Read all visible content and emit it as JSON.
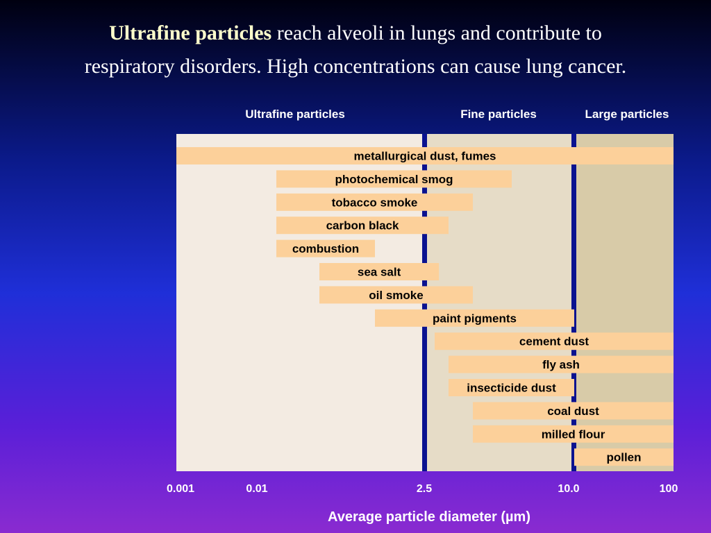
{
  "slide": {
    "title_highlight": "Ultrafine particles",
    "title_line1_rest": " reach alveoli in lungs and contribute to",
    "title_line2": "respiratory disorders. High concentrations can cause lung cancer."
  },
  "colors": {
    "ultrafine_region": "#f3ebe2",
    "fine_region": "#e6dcc7",
    "large_region": "#d8cba8",
    "divider": "#0a1290",
    "bar": "#fcd09a",
    "text": "#000000"
  },
  "chart_data": {
    "type": "bar",
    "orientation": "horizontal-range",
    "xlabel": "Average particle diameter (µm)",
    "x_ticks": [
      "0.001",
      "0.01",
      "2.5",
      "10.0",
      "100"
    ],
    "x_scale": "categorical (non-linear)",
    "regions": [
      {
        "label": "Ultrafine particles",
        "from": "0.001",
        "to": "2.5"
      },
      {
        "label": "Fine particles",
        "from": "2.5",
        "to": "10.0"
      },
      {
        "label": "Large particles",
        "from": "10.0",
        "to": "100"
      }
    ],
    "series": [
      {
        "name": "metallurgical dust, fumes",
        "from": 0.001,
        "to": 100
      },
      {
        "name": "photochemical smog",
        "from": 0.01,
        "to": 6
      },
      {
        "name": "tobacco smoke",
        "from": 0.01,
        "to": 4
      },
      {
        "name": "carbon black",
        "from": 0.01,
        "to": 3.5
      },
      {
        "name": "combustion",
        "from": 0.01,
        "to": 0.5
      },
      {
        "name": "sea salt",
        "from": 0.05,
        "to": 3
      },
      {
        "name": "oil smoke",
        "from": 0.05,
        "to": 4
      },
      {
        "name": "paint pigments",
        "from": 0.5,
        "to": 10
      },
      {
        "name": "cement dust",
        "from": 2.8,
        "to": 100
      },
      {
        "name": "fly ash",
        "from": 3.5,
        "to": 100
      },
      {
        "name": "insecticide dust",
        "from": 3.5,
        "to": 10
      },
      {
        "name": "coal dust",
        "from": 4,
        "to": 100
      },
      {
        "name": "milled flour",
        "from": 4,
        "to": 100
      },
      {
        "name": "pollen",
        "from": 10,
        "to": 100
      }
    ]
  }
}
